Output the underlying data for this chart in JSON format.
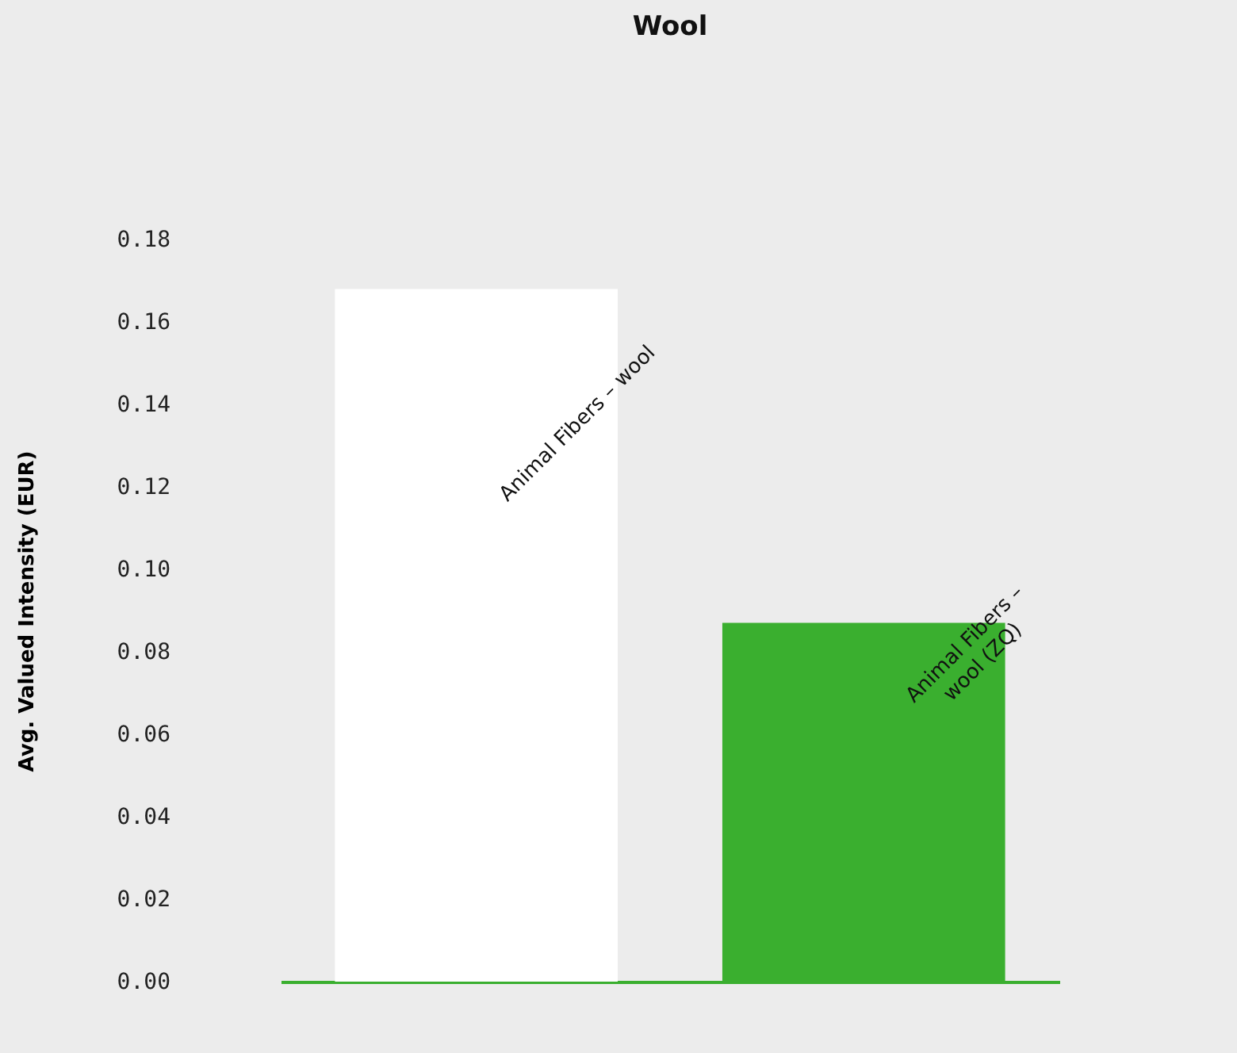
{
  "chart_data": {
    "type": "bar",
    "title": "Wool",
    "ylabel": "Avg. Valued Intensity (EUR)",
    "categories": [
      "Animal Fibers – wool",
      "Animal Fibers – wool (ZQ)"
    ],
    "values": [
      0.168,
      0.087
    ],
    "colors": [
      "#ffffff",
      "#3aaf2f"
    ],
    "ylim": [
      0,
      0.18
    ],
    "yticks": [
      {
        "value": 0,
        "label": "0.00"
      },
      {
        "value": 0.02,
        "label": "0.02"
      },
      {
        "value": 0.04,
        "label": "0.04"
      },
      {
        "value": 0.06,
        "label": "0.06"
      },
      {
        "value": 0.08,
        "label": "0.08"
      },
      {
        "value": 0.1,
        "label": "0.10"
      },
      {
        "value": 0.12,
        "label": "0.12"
      },
      {
        "value": 0.14,
        "label": "0.14"
      },
      {
        "value": 0.16,
        "label": "0.16"
      },
      {
        "value": 0.18,
        "label": "0.18"
      }
    ],
    "grid": false,
    "legend": false
  }
}
